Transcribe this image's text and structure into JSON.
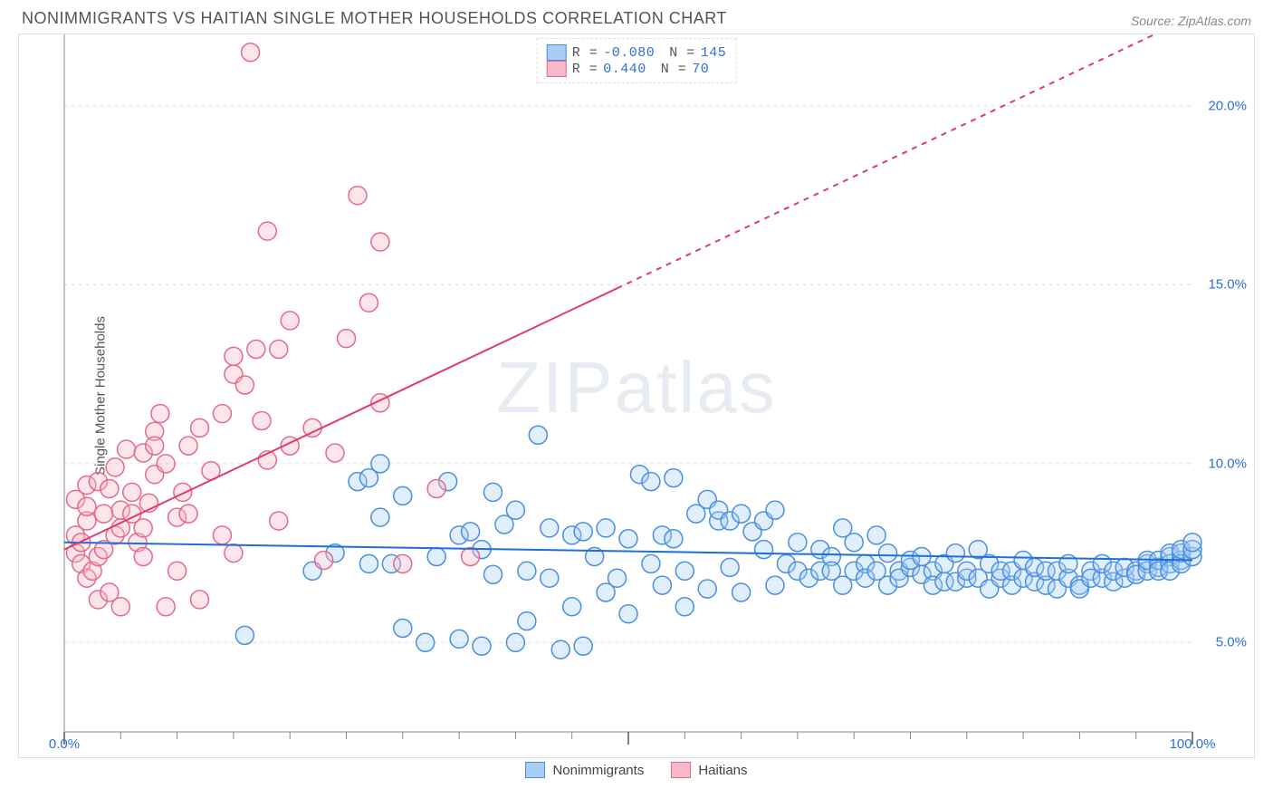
{
  "title": "NONIMMIGRANTS VS HAITIAN SINGLE MOTHER HOUSEHOLDS CORRELATION CHART",
  "source": "Source: ZipAtlas.com",
  "ylabel": "Single Mother Households",
  "watermark_zip": "ZIP",
  "watermark_atlas": "atlas",
  "chart": {
    "type": "scatter-with-regression",
    "xlim": [
      0,
      100
    ],
    "ylim": [
      2.5,
      22.0
    ],
    "y_ticks": [
      5.0,
      10.0,
      15.0,
      20.0
    ],
    "y_tick_labels": [
      "5.0%",
      "10.0%",
      "15.0%",
      "20.0%"
    ],
    "x_tick_major": [
      0,
      50,
      100
    ],
    "x_tick_labels": [
      "0.0%",
      "",
      "100.0%"
    ],
    "x_minor_ticks": [
      5,
      10,
      15,
      20,
      25,
      30,
      35,
      40,
      45,
      55,
      60,
      65,
      70,
      75,
      80,
      85,
      90,
      95
    ],
    "grid_color": "#dddddd",
    "grid_dash": "4,4",
    "background_color": "#ffffff",
    "marker_radius": 10,
    "marker_stroke_width": 1.5,
    "marker_fill_opacity": 0.35,
    "trend_line_width": 2,
    "series": [
      {
        "name": "Nonimmigrants",
        "color_fill": "#a9cdf5",
        "color_stroke": "#4a8fe0",
        "swatch_fill": "#a9cdf5",
        "swatch_stroke": "#4a8fe0",
        "R": "-0.080",
        "N": "145",
        "trend": {
          "x1": 0,
          "y1": 7.8,
          "x2": 100,
          "y2": 7.3,
          "color": "#1f6fd9",
          "dash_after_x": null
        },
        "points": [
          [
            16,
            5.2
          ],
          [
            22,
            7.0
          ],
          [
            24,
            7.5
          ],
          [
            26,
            9.5
          ],
          [
            27,
            9.6
          ],
          [
            27,
            7.2
          ],
          [
            28,
            10.0
          ],
          [
            28,
            8.5
          ],
          [
            29,
            7.2
          ],
          [
            30,
            9.1
          ],
          [
            30,
            5.4
          ],
          [
            32,
            5.0
          ],
          [
            33,
            7.4
          ],
          [
            34,
            9.5
          ],
          [
            35,
            8.0
          ],
          [
            35,
            5.1
          ],
          [
            36,
            8.1
          ],
          [
            37,
            7.6
          ],
          [
            37,
            4.9
          ],
          [
            38,
            9.2
          ],
          [
            38,
            6.9
          ],
          [
            39,
            8.3
          ],
          [
            40,
            8.7
          ],
          [
            40,
            5.0
          ],
          [
            41,
            7.0
          ],
          [
            41,
            5.6
          ],
          [
            42,
            10.8
          ],
          [
            43,
            8.2
          ],
          [
            43,
            6.8
          ],
          [
            44,
            4.8
          ],
          [
            45,
            8.0
          ],
          [
            45,
            6.0
          ],
          [
            46,
            8.1
          ],
          [
            46,
            4.9
          ],
          [
            47,
            7.4
          ],
          [
            48,
            8.2
          ],
          [
            48,
            6.4
          ],
          [
            49,
            6.8
          ],
          [
            50,
            7.9
          ],
          [
            50,
            5.8
          ],
          [
            51,
            9.7
          ],
          [
            52,
            9.5
          ],
          [
            52,
            7.2
          ],
          [
            53,
            8.0
          ],
          [
            53,
            6.6
          ],
          [
            54,
            9.6
          ],
          [
            54,
            7.9
          ],
          [
            55,
            7.0
          ],
          [
            55,
            6.0
          ],
          [
            56,
            8.6
          ],
          [
            57,
            9.0
          ],
          [
            57,
            6.5
          ],
          [
            58,
            8.4
          ],
          [
            58,
            8.7
          ],
          [
            59,
            7.1
          ],
          [
            59,
            8.4
          ],
          [
            60,
            8.6
          ],
          [
            60,
            6.4
          ],
          [
            61,
            8.1
          ],
          [
            62,
            7.6
          ],
          [
            62,
            8.4
          ],
          [
            63,
            6.6
          ],
          [
            63,
            8.7
          ],
          [
            64,
            7.2
          ],
          [
            65,
            7.0
          ],
          [
            65,
            7.8
          ],
          [
            66,
            6.8
          ],
          [
            67,
            7.0
          ],
          [
            67,
            7.6
          ],
          [
            68,
            7.4
          ],
          [
            68,
            7.0
          ],
          [
            69,
            8.2
          ],
          [
            69,
            6.6
          ],
          [
            70,
            7.8
          ],
          [
            70,
            7.0
          ],
          [
            71,
            7.2
          ],
          [
            71,
            6.8
          ],
          [
            72,
            8.0
          ],
          [
            72,
            7.0
          ],
          [
            73,
            6.6
          ],
          [
            73,
            7.5
          ],
          [
            74,
            7.0
          ],
          [
            74,
            6.8
          ],
          [
            75,
            7.1
          ],
          [
            75,
            7.3
          ],
          [
            76,
            6.9
          ],
          [
            76,
            7.4
          ],
          [
            77,
            7.0
          ],
          [
            77,
            6.6
          ],
          [
            78,
            7.2
          ],
          [
            78,
            6.7
          ],
          [
            79,
            7.5
          ],
          [
            79,
            6.7
          ],
          [
            80,
            6.8
          ],
          [
            80,
            7.0
          ],
          [
            81,
            6.8
          ],
          [
            81,
            7.6
          ],
          [
            82,
            7.2
          ],
          [
            82,
            6.5
          ],
          [
            83,
            6.8
          ],
          [
            83,
            7.0
          ],
          [
            84,
            6.6
          ],
          [
            84,
            7.0
          ],
          [
            85,
            6.8
          ],
          [
            85,
            7.3
          ],
          [
            86,
            6.7
          ],
          [
            86,
            7.1
          ],
          [
            87,
            6.6
          ],
          [
            87,
            7.0
          ],
          [
            88,
            7.0
          ],
          [
            88,
            6.5
          ],
          [
            89,
            6.8
          ],
          [
            89,
            7.2
          ],
          [
            90,
            6.6
          ],
          [
            90,
            6.5
          ],
          [
            91,
            7.0
          ],
          [
            91,
            6.8
          ],
          [
            92,
            6.8
          ],
          [
            92,
            7.2
          ],
          [
            93,
            6.7
          ],
          [
            93,
            7.0
          ],
          [
            94,
            6.8
          ],
          [
            94,
            7.1
          ],
          [
            95,
            7.0
          ],
          [
            95,
            6.9
          ],
          [
            96,
            7.2
          ],
          [
            96,
            7.0
          ],
          [
            96,
            7.3
          ],
          [
            97,
            7.1
          ],
          [
            97,
            7.3
          ],
          [
            97,
            7.0
          ],
          [
            98,
            7.4
          ],
          [
            98,
            7.2
          ],
          [
            98,
            7.0
          ],
          [
            98,
            7.5
          ],
          [
            99,
            7.3
          ],
          [
            99,
            7.5
          ],
          [
            99,
            7.2
          ],
          [
            99,
            7.6
          ],
          [
            100,
            7.4
          ],
          [
            100,
            7.6
          ],
          [
            100,
            7.8
          ]
        ]
      },
      {
        "name": "Haitians",
        "color_fill": "#f7b8c8",
        "color_stroke": "#e56a8a",
        "swatch_fill": "#f7b8c8",
        "swatch_stroke": "#e56a8a",
        "R": "0.440",
        "N": "70",
        "trend": {
          "x1": 0,
          "y1": 7.6,
          "x2": 100,
          "y2": 22.5,
          "color": "#e03b6a",
          "dash_after_x": 49
        },
        "points": [
          [
            1,
            8.0
          ],
          [
            1,
            7.5
          ],
          [
            1,
            9.0
          ],
          [
            1.5,
            7.2
          ],
          [
            1.5,
            7.8
          ],
          [
            2,
            6.8
          ],
          [
            2,
            8.4
          ],
          [
            2,
            8.8
          ],
          [
            2,
            9.4
          ],
          [
            2.5,
            7.0
          ],
          [
            3,
            7.4
          ],
          [
            3,
            9.5
          ],
          [
            3,
            6.2
          ],
          [
            3.5,
            8.6
          ],
          [
            3.5,
            7.6
          ],
          [
            4,
            9.3
          ],
          [
            4,
            6.4
          ],
          [
            4.5,
            8.0
          ],
          [
            4.5,
            9.9
          ],
          [
            5,
            8.7
          ],
          [
            5,
            8.2
          ],
          [
            5,
            6.0
          ],
          [
            5.5,
            10.4
          ],
          [
            6,
            9.2
          ],
          [
            6,
            8.6
          ],
          [
            6.5,
            7.8
          ],
          [
            7,
            10.3
          ],
          [
            7,
            8.2
          ],
          [
            7,
            7.4
          ],
          [
            7.5,
            8.9
          ],
          [
            8,
            10.9
          ],
          [
            8,
            10.5
          ],
          [
            8,
            9.7
          ],
          [
            8.5,
            11.4
          ],
          [
            9,
            6.0
          ],
          [
            9,
            10.0
          ],
          [
            10,
            8.5
          ],
          [
            10,
            7.0
          ],
          [
            10.5,
            9.2
          ],
          [
            11,
            8.6
          ],
          [
            11,
            10.5
          ],
          [
            12,
            11.0
          ],
          [
            12,
            6.2
          ],
          [
            13,
            9.8
          ],
          [
            14,
            8.0
          ],
          [
            14,
            11.4
          ],
          [
            15,
            12.5
          ],
          [
            15,
            13.0
          ],
          [
            15,
            7.5
          ],
          [
            16,
            12.2
          ],
          [
            16.5,
            21.5
          ],
          [
            17,
            13.2
          ],
          [
            17.5,
            11.2
          ],
          [
            18,
            10.1
          ],
          [
            18,
            16.5
          ],
          [
            19,
            13.2
          ],
          [
            19,
            8.4
          ],
          [
            20,
            10.5
          ],
          [
            20,
            14.0
          ],
          [
            22,
            11.0
          ],
          [
            23,
            7.3
          ],
          [
            24,
            10.3
          ],
          [
            25,
            13.5
          ],
          [
            26,
            17.5
          ],
          [
            27,
            14.5
          ],
          [
            28,
            16.2
          ],
          [
            28,
            11.7
          ],
          [
            30,
            7.2
          ],
          [
            33,
            9.3
          ],
          [
            36,
            7.4
          ]
        ]
      }
    ]
  },
  "legend_top": {
    "label_R": "R =",
    "label_N": "N ="
  },
  "legend_bottom": {
    "items": [
      "Nonimmigrants",
      "Haitians"
    ]
  }
}
